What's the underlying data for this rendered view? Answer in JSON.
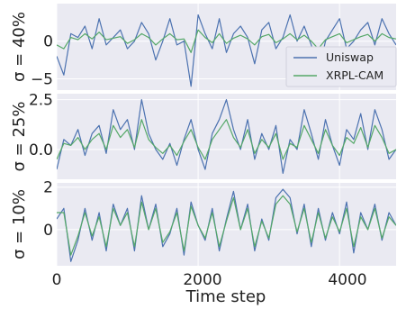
{
  "chart_data": {
    "type": "line",
    "xlabel": "Time step",
    "xlim": [
      0,
      4800
    ],
    "xticks": [
      0,
      2000,
      4000
    ],
    "xtick_labels": [
      "0",
      "2000",
      "4000"
    ],
    "colors": {
      "Uniswap": "#4c72b0",
      "XRPL-CAM": "#55a868",
      "panel_bg": "#eaeaf2",
      "grid": "#ffffff"
    },
    "legend": {
      "placement": "lower-right of top panel",
      "entries": [
        "Uniswap",
        "XRPL-CAM"
      ]
    },
    "grid": true,
    "panels": [
      {
        "ylabel": "σ = 40%",
        "ylim": [
          -6.5,
          5.0
        ],
        "yticks": [
          0,
          -5
        ],
        "ytick_labels": [
          "0",
          "−5"
        ],
        "x": [
          0,
          100,
          200,
          300,
          400,
          500,
          600,
          700,
          800,
          900,
          1000,
          1100,
          1200,
          1300,
          1400,
          1500,
          1600,
          1700,
          1800,
          1900,
          2000,
          2100,
          2200,
          2300,
          2400,
          2500,
          2600,
          2700,
          2800,
          2900,
          3000,
          3100,
          3200,
          3300,
          3400,
          3500,
          3600,
          3700,
          3800,
          3900,
          4000,
          4100,
          4200,
          4300,
          4400,
          4500,
          4600,
          4700,
          4800
        ],
        "series": [
          {
            "name": "Uniswap",
            "values": [
              -2.0,
              -4.5,
              1.0,
              0.5,
              2.0,
              -1.0,
              3.0,
              -0.5,
              0.5,
              1.5,
              -1.0,
              0.0,
              2.5,
              1.0,
              -2.5,
              0.0,
              3.0,
              -0.5,
              0.0,
              -6.0,
              3.5,
              1.0,
              -1.0,
              3.0,
              -1.5,
              1.0,
              2.0,
              0.5,
              -3.0,
              1.5,
              2.5,
              -1.0,
              0.5,
              3.5,
              0.0,
              2.0,
              -0.5,
              -4.5,
              0.0,
              1.5,
              3.0,
              -1.0,
              0.0,
              1.5,
              2.5,
              -0.5,
              3.0,
              1.0,
              -0.5
            ]
          },
          {
            "name": "XRPL-CAM",
            "values": [
              -0.5,
              -1.0,
              0.5,
              0.2,
              1.0,
              0.3,
              1.2,
              0.2,
              0.4,
              0.6,
              -0.3,
              0.2,
              1.0,
              0.5,
              -0.5,
              0.3,
              1.0,
              0.2,
              0.3,
              -1.5,
              1.5,
              0.5,
              -0.2,
              1.0,
              -0.3,
              0.4,
              0.8,
              0.3,
              -0.5,
              0.6,
              0.9,
              -0.2,
              0.3,
              1.0,
              0.2,
              0.8,
              0.0,
              -1.0,
              0.2,
              0.6,
              1.0,
              -0.2,
              0.2,
              0.6,
              0.9,
              0.0,
              1.0,
              0.5,
              0.3
            ]
          }
        ]
      },
      {
        "ylabel": "σ = 25%",
        "ylim": [
          -1.5,
          2.8
        ],
        "yticks": [
          2.5,
          0.0
        ],
        "ytick_labels": [
          "2.5",
          "0.0"
        ],
        "x": [
          0,
          100,
          200,
          300,
          400,
          500,
          600,
          700,
          800,
          900,
          1000,
          1100,
          1200,
          1300,
          1400,
          1500,
          1600,
          1700,
          1800,
          1900,
          2000,
          2100,
          2200,
          2300,
          2400,
          2500,
          2600,
          2700,
          2800,
          2900,
          3000,
          3100,
          3200,
          3300,
          3400,
          3500,
          3600,
          3700,
          3800,
          3900,
          4000,
          4100,
          4200,
          4300,
          4400,
          4500,
          4600,
          4700,
          4800
        ],
        "series": [
          {
            "name": "Uniswap",
            "values": [
              -1.0,
              0.5,
              0.2,
              1.0,
              -0.3,
              0.8,
              1.2,
              -0.2,
              2.0,
              1.0,
              1.5,
              0.0,
              2.5,
              0.8,
              0.0,
              -0.5,
              0.3,
              -0.8,
              0.5,
              1.5,
              0.0,
              -1.0,
              0.8,
              1.5,
              2.5,
              1.0,
              0.0,
              1.5,
              -0.5,
              0.8,
              0.0,
              1.2,
              -1.2,
              0.5,
              0.0,
              2.0,
              0.8,
              -0.5,
              1.5,
              0.2,
              -0.8,
              1.0,
              0.5,
              1.8,
              0.0,
              2.0,
              1.0,
              -0.5,
              0.0
            ]
          },
          {
            "name": "XRPL-CAM",
            "values": [
              -0.5,
              0.3,
              0.2,
              0.6,
              0.0,
              0.5,
              0.8,
              0.0,
              1.2,
              0.6,
              1.0,
              0.1,
              1.5,
              0.5,
              0.1,
              -0.2,
              0.2,
              -0.3,
              0.4,
              1.0,
              0.1,
              -0.5,
              0.5,
              1.0,
              1.5,
              0.6,
              0.1,
              1.0,
              -0.2,
              0.5,
              0.1,
              0.8,
              -0.5,
              0.3,
              0.1,
              1.2,
              0.5,
              -0.2,
              1.0,
              0.2,
              -0.3,
              0.6,
              0.3,
              1.1,
              0.1,
              1.2,
              0.6,
              -0.2,
              0.0
            ]
          }
        ]
      },
      {
        "ylabel": "σ = 10%",
        "ylim": [
          -1.7,
          2.2
        ],
        "yticks": [
          2,
          0
        ],
        "ytick_labels": [
          "2",
          "0"
        ],
        "x": [
          0,
          100,
          200,
          300,
          400,
          500,
          600,
          700,
          800,
          900,
          1000,
          1100,
          1200,
          1300,
          1400,
          1500,
          1600,
          1700,
          1800,
          1900,
          2000,
          2100,
          2200,
          2300,
          2400,
          2500,
          2600,
          2700,
          2800,
          2900,
          3000,
          3100,
          3200,
          3300,
          3400,
          3500,
          3600,
          3700,
          3800,
          3900,
          4000,
          4100,
          4200,
          4300,
          4400,
          4500,
          4600,
          4700,
          4800
        ],
        "series": [
          {
            "name": "Uniswap",
            "values": [
              0.5,
              1.0,
              -1.5,
              -0.5,
              1.0,
              -0.5,
              0.8,
              -1.0,
              1.2,
              0.2,
              1.0,
              -1.0,
              1.6,
              0.0,
              1.2,
              -0.8,
              -0.2,
              1.0,
              -1.2,
              1.3,
              0.2,
              -0.5,
              1.0,
              -1.0,
              0.5,
              1.8,
              0.0,
              1.2,
              -1.0,
              0.5,
              -0.5,
              1.5,
              1.9,
              1.5,
              -0.2,
              1.2,
              -0.8,
              1.0,
              -0.5,
              0.8,
              -0.2,
              1.3,
              -1.1,
              0.8,
              0.0,
              1.2,
              -0.5,
              0.8,
              0.2
            ]
          },
          {
            "name": "XRPL-CAM",
            "values": [
              0.8,
              0.8,
              -1.2,
              -0.3,
              0.8,
              -0.3,
              0.6,
              -0.8,
              1.0,
              0.2,
              0.8,
              -0.8,
              1.3,
              0.0,
              1.0,
              -0.6,
              -0.1,
              0.8,
              -1.0,
              1.1,
              0.2,
              -0.4,
              0.8,
              -0.8,
              0.4,
              1.5,
              0.0,
              1.0,
              -0.8,
              0.4,
              -0.4,
              1.2,
              1.6,
              1.2,
              -0.1,
              1.0,
              -0.6,
              0.8,
              -0.4,
              0.6,
              -0.1,
              1.0,
              -0.8,
              0.6,
              0.0,
              1.0,
              -0.4,
              0.6,
              0.2
            ]
          }
        ]
      }
    ]
  }
}
